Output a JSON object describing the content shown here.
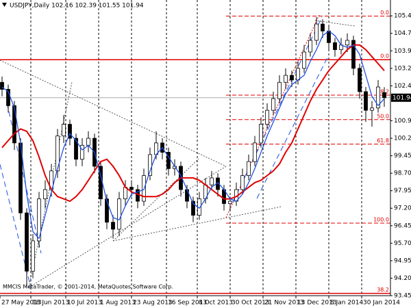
{
  "chart_data": {
    "type": "candlestick",
    "title": "USDJPY,Daily  102.16 102.39 101.55 101.94",
    "watermark": "MMCIS MetaTrader, © 2001-2014, MetaQuotes Software Corp.",
    "x": [
      1,
      4,
      7,
      10,
      13,
      16,
      19,
      22,
      25,
      28,
      31,
      34,
      37,
      40,
      43,
      46,
      49,
      52,
      55,
      58,
      61,
      64,
      67,
      70,
      73,
      76,
      79,
      82,
      85,
      88,
      91,
      94,
      97,
      100,
      103,
      106,
      109,
      112,
      115,
      118,
      121,
      124,
      127,
      130,
      133,
      136,
      139,
      142,
      145,
      148,
      151,
      154,
      157,
      160,
      163,
      166,
      169,
      172,
      175,
      178,
      181,
      184,
      187
    ],
    "open": [
      102.6,
      102.3,
      101.6,
      100.0,
      97.0,
      94.5,
      95.8,
      97.6,
      98.0,
      98.8,
      100.3,
      100.8,
      100.2,
      99.3,
      99.9,
      100.2,
      99.0,
      97.6,
      96.6,
      96.3,
      97.6,
      98.1,
      98.0,
      97.5,
      98.6,
      99.5,
      100.0,
      99.6,
      98.9,
      99.0,
      98.0,
      97.5,
      96.9,
      97.6,
      98.2,
      98.5,
      98.0,
      97.4,
      97.5,
      98.0,
      98.6,
      99.2,
      100.0,
      100.8,
      101.4,
      101.9,
      102.6,
      102.9,
      102.7,
      103.2,
      103.9,
      104.4,
      105.1,
      104.8,
      104.3,
      104.0,
      104.2,
      104.4,
      103.2,
      102.2,
      101.4,
      101.5,
      102.16
    ],
    "high": [
      102.85,
      102.5,
      101.8,
      100.2,
      97.2,
      96.1,
      97.9,
      98.4,
      99.1,
      100.6,
      101.2,
      101.0,
      100.4,
      100.2,
      100.5,
      100.4,
      99.2,
      97.8,
      96.9,
      97.9,
      98.4,
      98.4,
      98.2,
      98.9,
      99.8,
      100.5,
      100.2,
      99.8,
      99.3,
      99.2,
      98.2,
      97.7,
      97.9,
      98.5,
      98.8,
      98.7,
      98.2,
      97.7,
      98.3,
      98.9,
      99.5,
      100.3,
      101.1,
      101.7,
      102.2,
      102.9,
      103.2,
      103.1,
      103.5,
      104.2,
      104.7,
      105.4,
      105.3,
      105.0,
      104.5,
      104.5,
      104.7,
      104.6,
      103.4,
      102.4,
      101.8,
      102.7,
      102.39
    ],
    "low": [
      102.0,
      101.3,
      99.7,
      96.7,
      93.8,
      94.2,
      95.5,
      97.2,
      97.7,
      98.5,
      100.0,
      99.9,
      99.0,
      99.0,
      99.6,
      98.7,
      97.3,
      96.3,
      95.9,
      96.0,
      97.3,
      97.7,
      97.2,
      97.3,
      98.4,
      99.3,
      99.3,
      98.6,
      98.6,
      97.7,
      97.2,
      96.6,
      96.7,
      97.4,
      98.0,
      97.7,
      97.1,
      97.1,
      97.3,
      97.8,
      98.4,
      99.0,
      99.8,
      100.6,
      101.2,
      101.7,
      102.3,
      102.4,
      102.5,
      103.0,
      103.7,
      104.2,
      104.5,
      104.0,
      103.7,
      103.8,
      103.9,
      102.9,
      101.9,
      100.9,
      100.7,
      101.3,
      101.55
    ],
    "close": [
      102.3,
      101.6,
      100.0,
      97.0,
      94.5,
      95.8,
      97.6,
      98.0,
      98.8,
      100.3,
      100.8,
      100.2,
      99.3,
      99.9,
      100.2,
      99.0,
      97.6,
      96.6,
      96.3,
      97.6,
      98.1,
      98.0,
      97.5,
      98.6,
      99.5,
      100.0,
      99.6,
      98.9,
      99.0,
      98.0,
      97.5,
      96.9,
      97.6,
      98.2,
      98.5,
      98.0,
      97.4,
      97.5,
      98.0,
      98.6,
      99.2,
      100.0,
      100.8,
      101.4,
      101.9,
      102.6,
      102.9,
      102.7,
      103.2,
      103.9,
      104.4,
      105.1,
      104.8,
      104.3,
      104.0,
      104.2,
      104.4,
      103.2,
      102.2,
      101.4,
      101.5,
      102.4,
      101.94
    ],
    "up_color": "#ffffff",
    "down_color": "#000000",
    "lines": [
      {
        "color": "#e00000",
        "values": [
          99.8,
          100.1,
          100.4,
          100.6,
          100.5,
          100.1,
          99.4,
          98.6,
          98.0,
          97.7,
          97.6,
          97.5,
          97.7,
          98.0,
          98.4,
          98.8,
          99.2,
          99.3,
          99.0,
          98.6,
          98.1,
          97.9,
          97.8,
          97.7,
          97.7,
          97.7,
          97.8,
          98.0,
          98.3,
          98.5,
          98.5,
          98.5,
          98.4,
          98.2,
          98.0,
          97.8,
          97.6,
          97.6,
          97.7,
          97.9,
          98.1,
          98.3,
          98.4,
          98.6,
          98.8,
          99.1,
          99.6,
          100.0,
          100.6,
          101.2,
          101.8,
          102.3,
          102.7,
          103.1,
          103.4,
          103.7,
          104.0,
          104.2,
          104.2,
          104.0,
          103.7,
          103.4,
          103.1
        ]
      },
      {
        "color": "#1e50e0",
        "values": [
          102.4,
          102.2,
          101.5,
          100.0,
          97.8,
          96.2,
          95.9,
          96.9,
          97.9,
          98.9,
          99.8,
          100.4,
          100.1,
          99.7,
          99.9,
          99.6,
          98.6,
          97.5,
          96.8,
          96.7,
          97.3,
          97.8,
          97.9,
          98.0,
          98.8,
          99.5,
          99.8,
          99.4,
          99.0,
          98.6,
          98.0,
          97.4,
          97.2,
          97.6,
          98.1,
          98.3,
          98.0,
          97.6,
          97.5,
          97.8,
          98.3,
          98.9,
          99.6,
          100.3,
          100.9,
          101.5,
          102.1,
          102.5,
          102.7,
          102.9,
          103.5,
          104.0,
          104.6,
          104.8,
          104.6,
          104.2,
          104.1,
          104.2,
          103.8,
          102.9,
          102.0,
          101.6,
          101.9
        ]
      }
    ],
    "fibonacci": [
      {
        "color": "#e00000",
        "levels": [
          {
            "label": "0.0",
            "value": 105.44
          },
          {
            "label": "38.2",
            "value": 102.05
          },
          {
            "label": "50.0",
            "value": 101.0
          },
          {
            "label": "61.8",
            "value": 99.95
          },
          {
            "label": "100.0",
            "value": 96.56
          }
        ]
      },
      {
        "color": "#e00000",
        "levels": [
          {
            "label": "0.0",
            "value": 103.57
          },
          {
            "label": "38.2",
            "value": 93.55
          }
        ]
      }
    ],
    "current_price": 101.94,
    "xlim": [
      0,
      190
    ],
    "ylim": [
      93.45,
      106.13
    ],
    "grid": true,
    "xticks": [
      {
        "value": 0,
        "label": "27 May 2013"
      },
      {
        "value": 15,
        "label": "18 Jun 2013"
      },
      {
        "value": 32,
        "label": "10 Jul 2013"
      },
      {
        "value": 48,
        "label": "1 Aug 2013"
      },
      {
        "value": 64,
        "label": "23 Aug 2013"
      },
      {
        "value": 81,
        "label": "16 Sep 2013"
      },
      {
        "value": 96,
        "label": "8 Oct 2013"
      },
      {
        "value": 112,
        "label": "30 Oct 2013"
      },
      {
        "value": 128,
        "label": "21 Nov 2013"
      },
      {
        "value": 144,
        "label": "13 Dec 2013"
      },
      {
        "value": 160,
        "label": "8 Jan 2014"
      },
      {
        "value": 176,
        "label": "30 Jan 2014"
      }
    ],
    "yticks": [
      105.45,
      {
        "value": 104.7,
        "label": "104.70"
      },
      103.95,
      {
        "value": 103.2,
        "label": "103.20"
      },
      102.45,
      100.95,
      {
        "value": 100.2,
        "label": "100.20"
      },
      99.45,
      {
        "value": 98.7,
        "label": "98.70"
      },
      97.95,
      {
        "value": 97.2,
        "label": "97.20"
      },
      96.45,
      {
        "value": 95.7,
        "label": "95.70"
      },
      94.95,
      {
        "value": 94.2,
        "label": "94.20"
      },
      93.45
    ]
  }
}
